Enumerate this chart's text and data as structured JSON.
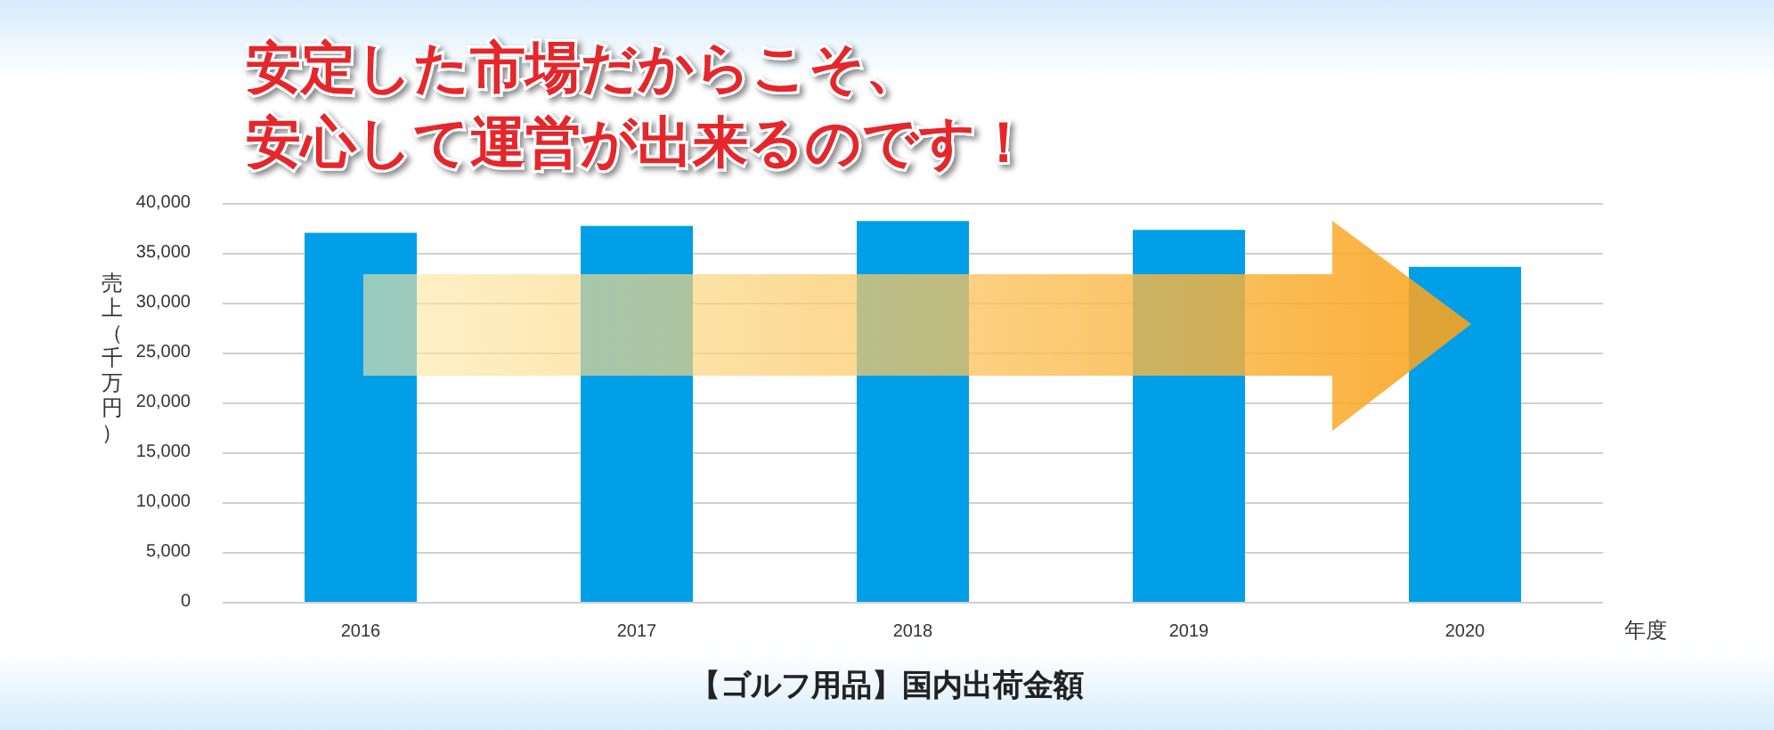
{
  "chart_data": {
    "type": "bar",
    "title": "安定した市場だからこそ、",
    "subtitle": "安心して運営が出来るのです！",
    "annotations": [
      "【ゴルフ用品】国内出荷金額"
    ],
    "xlabel": "年度",
    "ylabel": "売上（千万円）",
    "categories": [
      "2016",
      "2017",
      "2018",
      "2019",
      "2020"
    ],
    "values": [
      37000,
      37700,
      38200,
      37300,
      33600
    ],
    "color": "#009fe8",
    "ylim": [
      0,
      40000
    ],
    "yticks": [
      0,
      {
        "value": 5000,
        "label": "5,000"
      },
      {
        "value": 10000,
        "label": "10,000"
      },
      {
        "value": 15000,
        "label": "15,000"
      },
      {
        "value": 20000,
        "label": "20,000"
      },
      {
        "value": 25000,
        "label": "25,000"
      },
      {
        "value": 30000,
        "label": "30,000"
      },
      {
        "value": 35000,
        "label": "35,000"
      },
      {
        "value": 40000,
        "label": "40,000"
      }
    ],
    "grid": "y"
  }
}
